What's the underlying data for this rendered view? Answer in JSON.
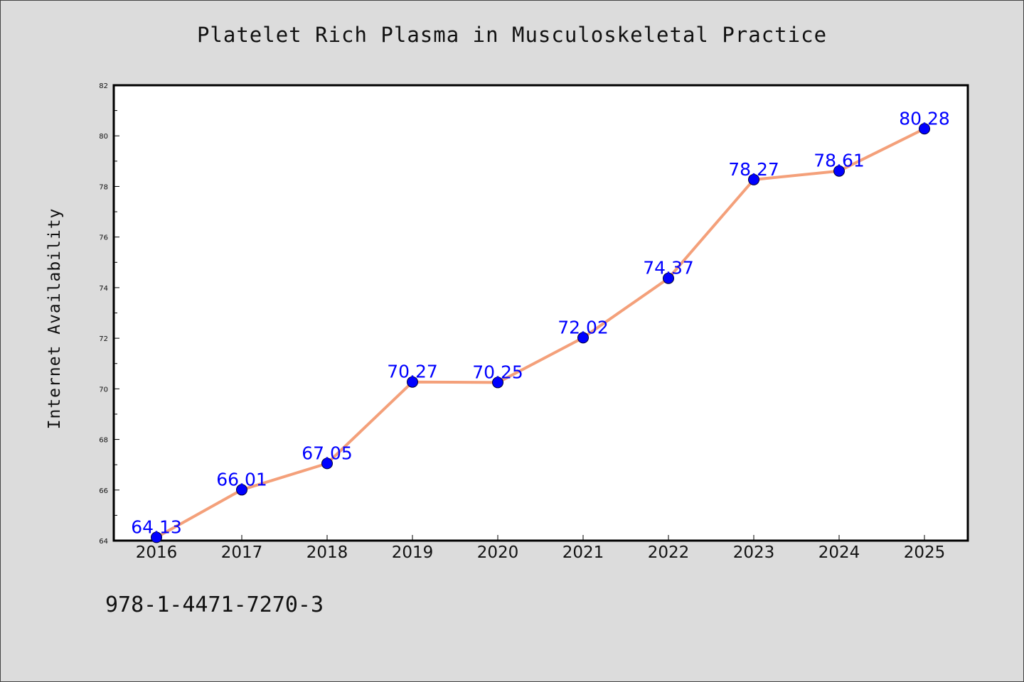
{
  "chart_data": {
    "type": "line",
    "title": "Platelet Rich Plasma in Musculoskeletal Practice",
    "xlabel": "",
    "ylabel": "Internet Availability",
    "categories": [
      "2016",
      "2017",
      "2018",
      "2019",
      "2020",
      "2021",
      "2022",
      "2023",
      "2024",
      "2025"
    ],
    "values": [
      64.13,
      66.01,
      67.05,
      70.27,
      70.25,
      72.02,
      74.37,
      78.27,
      78.61,
      80.28
    ],
    "data_labels": [
      "64.13",
      "66.01",
      "67.05",
      "70.27",
      "70.25",
      "72.02",
      "74.37",
      "78.27",
      "78.61",
      "80.28"
    ],
    "ylim": [
      64,
      82
    ],
    "yticks": [
      "64",
      "66",
      "68",
      "70",
      "72",
      "74",
      "76",
      "78",
      "80",
      "82"
    ],
    "grid": false,
    "line_color": "#f4a07a",
    "marker_color": "#0000ff"
  },
  "footer": {
    "isbn": "978-1-4471-7270-3"
  }
}
